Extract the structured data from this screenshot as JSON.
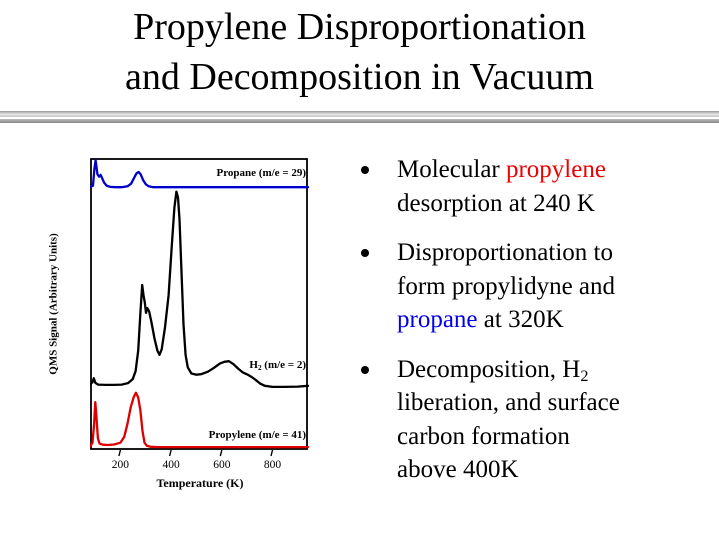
{
  "slide": {
    "title": {
      "line1": "Propylene Disproportionation",
      "line2": "and Decomposition in Vacuum"
    }
  },
  "colors": {
    "text_red": "#ee0000",
    "text_blue": "#0000ee",
    "trace_propane": "#0000cc",
    "trace_h2": "#000000",
    "trace_propylene": "#dd0000"
  },
  "bullets": [
    {
      "lines": [
        [
          {
            "t": "Molecular "
          },
          {
            "t": "propylene",
            "color": "red"
          }
        ],
        [
          {
            "t": "desorption at 240 K"
          }
        ]
      ]
    },
    {
      "lines": [
        [
          {
            "t": "Disproportionation to"
          }
        ],
        [
          {
            "t": "form propylidyne and"
          }
        ],
        [
          {
            "t": "propane",
            "color": "blue"
          },
          {
            "t": " at 320K"
          }
        ]
      ]
    },
    {
      "lines": [
        [
          {
            "t": "Decomposition, H"
          },
          {
            "t": "2",
            "sub": true
          }
        ],
        [
          {
            "t": "liberation, and surface"
          }
        ],
        [
          {
            "t": "carbon formation"
          }
        ],
        [
          {
            "t": "above 400K"
          }
        ]
      ]
    }
  ],
  "chart_data": {
    "type": "line",
    "title": "",
    "xlabel": "Temperature (K)",
    "ylabel": "QMS Signal (Arbitrary Units)",
    "xlim": [
      80,
      940
    ],
    "ylim": [
      0,
      100
    ],
    "xticks": [
      200,
      400,
      600,
      800
    ],
    "grid": false,
    "legend_position": "labels-inline-right",
    "y_units_note": "arbitrary units; traces vertically offset as drawn, 0-100 relative scale",
    "series": [
      {
        "id": "propane",
        "name": "Propane (m/e = 29)",
        "color": "#0000cc",
        "label_segments": [
          {
            "t": "Propane (m/e = 29)"
          }
        ],
        "points": [
          [
            78,
            90
          ],
          [
            92,
            90.5
          ],
          [
            97,
            96
          ],
          [
            102,
            99.2
          ],
          [
            105,
            97.5
          ],
          [
            109,
            94.5
          ],
          [
            116,
            93.6
          ],
          [
            122,
            94.2
          ],
          [
            128,
            93
          ],
          [
            136,
            91.5
          ],
          [
            146,
            90.5
          ],
          [
            160,
            90.1
          ],
          [
            180,
            90
          ],
          [
            205,
            90
          ],
          [
            228,
            90.3
          ],
          [
            242,
            91.2
          ],
          [
            254,
            93.2
          ],
          [
            264,
            94.8
          ],
          [
            272,
            95.2
          ],
          [
            280,
            94.4
          ],
          [
            290,
            92.4
          ],
          [
            300,
            91
          ],
          [
            312,
            90.3
          ],
          [
            330,
            90
          ],
          [
            500,
            90
          ],
          [
            700,
            90
          ],
          [
            940,
            90
          ]
        ]
      },
      {
        "id": "h2",
        "name": "H2 (m/e = 2)",
        "color": "#000000",
        "label_segments": [
          {
            "t": "H"
          },
          {
            "t": "2",
            "sub": true
          },
          {
            "t": " (m/e = 2)"
          }
        ],
        "points": [
          [
            82,
            22.6
          ],
          [
            90,
            23.2
          ],
          [
            95,
            24.6
          ],
          [
            101,
            23
          ],
          [
            112,
            22.4
          ],
          [
            140,
            22.3
          ],
          [
            175,
            22.3
          ],
          [
            205,
            22.4
          ],
          [
            230,
            22.9
          ],
          [
            248,
            24.2
          ],
          [
            260,
            27
          ],
          [
            270,
            34
          ],
          [
            279,
            47
          ],
          [
            286,
            56.5
          ],
          [
            291,
            53
          ],
          [
            296,
            50.5
          ],
          [
            301,
            47
          ],
          [
            306,
            48.6
          ],
          [
            313,
            47.5
          ],
          [
            322,
            44
          ],
          [
            335,
            38
          ],
          [
            346,
            34
          ],
          [
            354,
            32.6
          ],
          [
            363,
            34.5
          ],
          [
            376,
            42
          ],
          [
            390,
            53
          ],
          [
            402,
            69
          ],
          [
            413,
            83
          ],
          [
            421,
            88.5
          ],
          [
            427,
            86.5
          ],
          [
            433,
            79
          ],
          [
            441,
            61
          ],
          [
            449,
            43
          ],
          [
            457,
            32.5
          ],
          [
            466,
            28.3
          ],
          [
            480,
            26.2
          ],
          [
            500,
            25.8
          ],
          [
            520,
            26
          ],
          [
            545,
            26.8
          ],
          [
            570,
            28.2
          ],
          [
            592,
            29.6
          ],
          [
            610,
            30.2
          ],
          [
            628,
            30.4
          ],
          [
            646,
            29.4
          ],
          [
            664,
            27.9
          ],
          [
            682,
            26.6
          ],
          [
            700,
            25.9
          ],
          [
            718,
            25
          ],
          [
            735,
            23.9
          ],
          [
            752,
            22.7
          ],
          [
            770,
            22
          ],
          [
            800,
            21.6
          ],
          [
            850,
            21.6
          ],
          [
            900,
            21.7
          ],
          [
            940,
            22
          ]
        ]
      },
      {
        "id": "propylene",
        "name": "Propylene (m/e = 41)",
        "color": "#dd0000",
        "label_segments": [
          {
            "t": "Propylene (m/e = 41)"
          }
        ],
        "points": [
          [
            80,
            1.2
          ],
          [
            90,
            2.5
          ],
          [
            96,
            9
          ],
          [
            101,
            16.4
          ],
          [
            105,
            12
          ],
          [
            111,
            4
          ],
          [
            118,
            2.2
          ],
          [
            130,
            1.8
          ],
          [
            150,
            1.7
          ],
          [
            175,
            1.9
          ],
          [
            200,
            2.5
          ],
          [
            215,
            4.5
          ],
          [
            228,
            9
          ],
          [
            240,
            14.5
          ],
          [
            252,
            18
          ],
          [
            261,
            19.6
          ],
          [
            270,
            18
          ],
          [
            279,
            13.5
          ],
          [
            287,
            6.5
          ],
          [
            295,
            2.5
          ],
          [
            305,
            1.4
          ],
          [
            320,
            1.1
          ],
          [
            350,
            1
          ],
          [
            500,
            1
          ],
          [
            700,
            1
          ],
          [
            940,
            1
          ]
        ]
      }
    ]
  }
}
